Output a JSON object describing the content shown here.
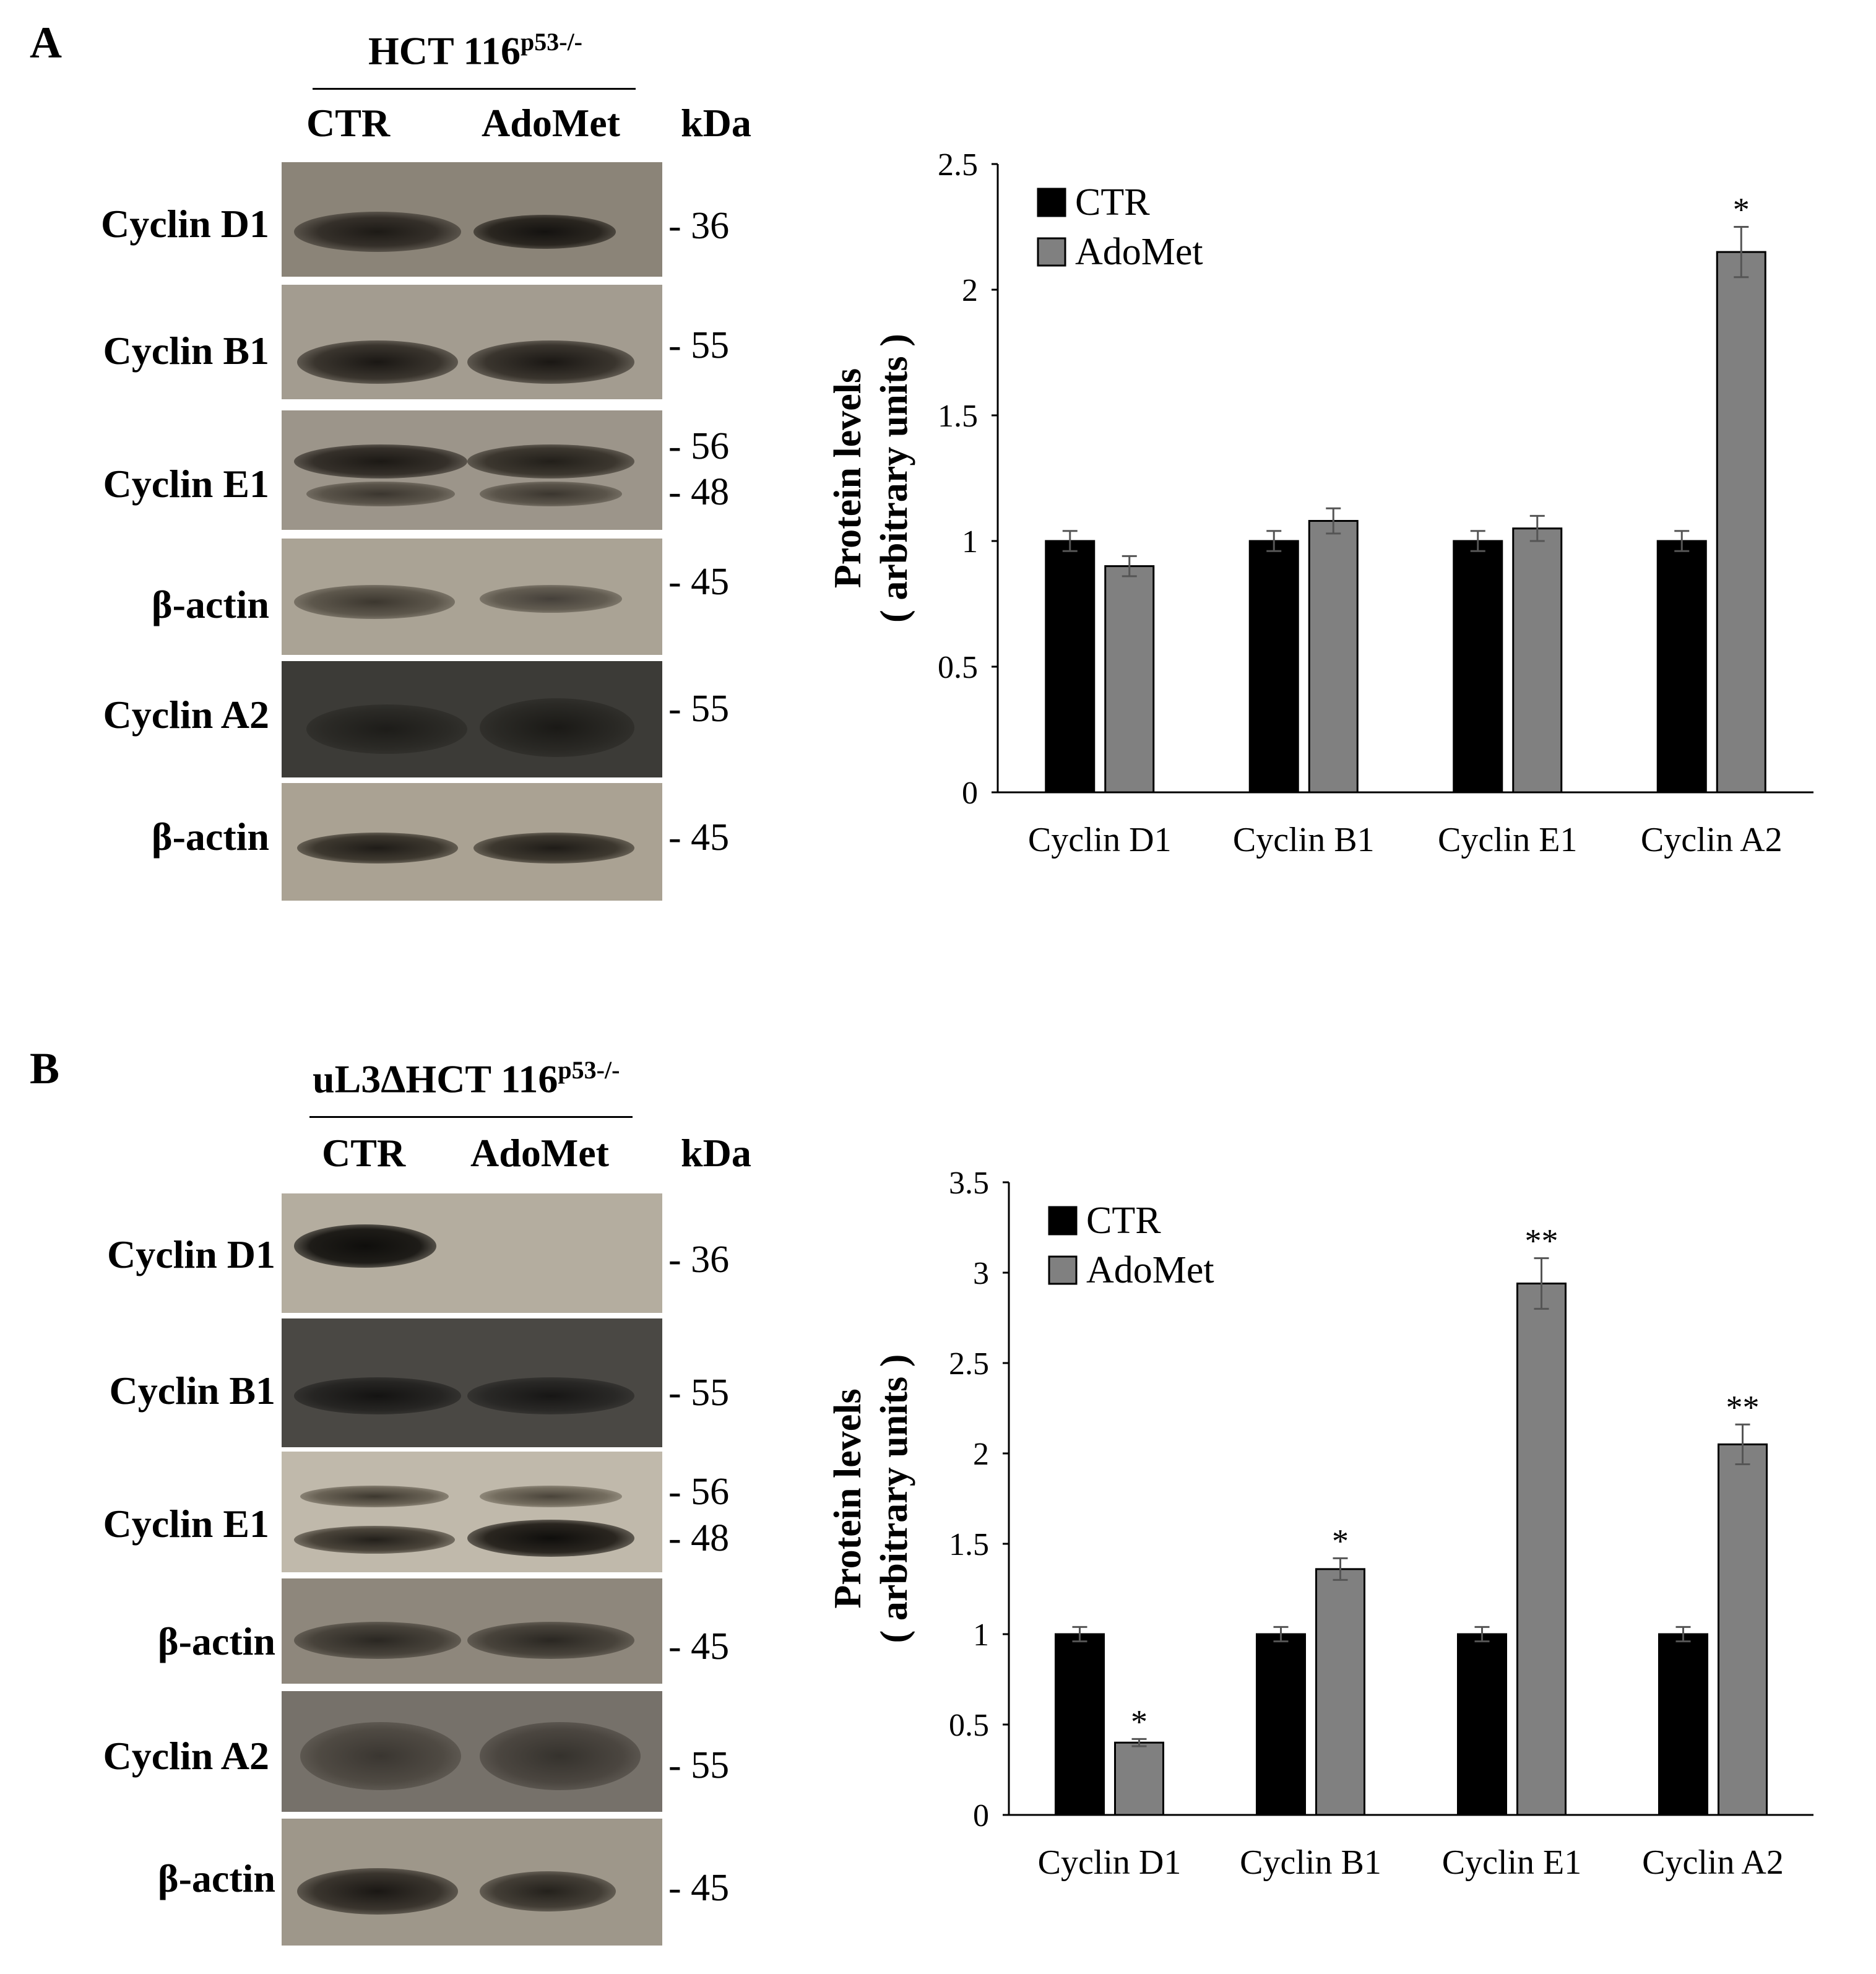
{
  "panels": [
    {
      "letter": "A",
      "cell_line": "HCT 116",
      "cell_line_sup": "p53-/-",
      "col_ctr": "CTR",
      "col_treat": "AdoMet",
      "kda_header": "kDa",
      "blots": [
        {
          "label": "Cyclin D1",
          "kda": [
            "- 36"
          ]
        },
        {
          "label": "Cyclin B1",
          "kda": [
            "- 55"
          ]
        },
        {
          "label": "Cyclin E1",
          "kda": [
            "- 56",
            "- 48"
          ]
        },
        {
          "label": "β-actin",
          "kda": [
            "- 45"
          ]
        },
        {
          "label": "Cyclin A2",
          "kda": [
            "- 55"
          ]
        },
        {
          "label": "β-actin",
          "kda": [
            "- 45"
          ]
        }
      ]
    },
    {
      "letter": "B",
      "cell_line": "uL3ΔHCT 116",
      "cell_line_sup": "p53-/-",
      "col_ctr": "CTR",
      "col_treat": "AdoMet",
      "kda_header": "kDa",
      "blots": [
        {
          "label": "Cyclin D1",
          "kda": [
            "- 36"
          ]
        },
        {
          "label": "Cyclin B1",
          "kda": [
            "- 55"
          ]
        },
        {
          "label": "Cyclin E1",
          "kda": [
            "- 56",
            "- 48"
          ]
        },
        {
          "label": "β-actin",
          "kda": [
            "- 45"
          ]
        },
        {
          "label": "Cyclin A2",
          "kda": [
            "- 55"
          ]
        },
        {
          "label": "β-actin",
          "kda": [
            "- 45"
          ]
        }
      ]
    }
  ],
  "chart_data": [
    {
      "type": "bar",
      "ylabel_line1": "Protein levels",
      "ylabel_line2": "( arbitrary units )",
      "categories": [
        "Cyclin D1",
        "Cyclin B1",
        "Cyclin E1",
        "Cyclin A2"
      ],
      "ylim": [
        0,
        2.5
      ],
      "yticks": [
        "0",
        "0.5",
        "1",
        "1.5",
        "2",
        "2.5"
      ],
      "legend_position": "top-left",
      "series": [
        {
          "name": "CTR",
          "color": "#000000",
          "values": [
            1.0,
            1.0,
            1.0,
            1.0
          ],
          "errors": [
            0.04,
            0.04,
            0.04,
            0.04
          ],
          "sig": [
            "",
            "",
            "",
            ""
          ]
        },
        {
          "name": "AdoMet",
          "color": "#808080",
          "values": [
            0.9,
            1.08,
            1.05,
            2.15
          ],
          "errors": [
            0.04,
            0.05,
            0.05,
            0.1
          ],
          "sig": [
            "",
            "",
            "",
            "*"
          ]
        }
      ]
    },
    {
      "type": "bar",
      "ylabel_line1": "Protein levels",
      "ylabel_line2": "( arbitrary units )",
      "categories": [
        "Cyclin D1",
        "Cyclin B1",
        "Cyclin E1",
        "Cyclin A2"
      ],
      "ylim": [
        0,
        3.5
      ],
      "yticks": [
        "0",
        "0.5",
        "1",
        "1.5",
        "2",
        "2.5",
        "3",
        "3.5"
      ],
      "legend_position": "top-left",
      "series": [
        {
          "name": "CTR",
          "color": "#000000",
          "values": [
            1.0,
            1.0,
            1.0,
            1.0
          ],
          "errors": [
            0.04,
            0.04,
            0.04,
            0.04
          ],
          "sig": [
            "",
            "",
            "",
            ""
          ]
        },
        {
          "name": "AdoMet",
          "color": "#808080",
          "values": [
            0.4,
            1.36,
            2.94,
            2.05
          ],
          "errors": [
            0.02,
            0.06,
            0.14,
            0.11
          ],
          "sig": [
            "*",
            "*",
            "**",
            "**"
          ]
        }
      ]
    }
  ]
}
